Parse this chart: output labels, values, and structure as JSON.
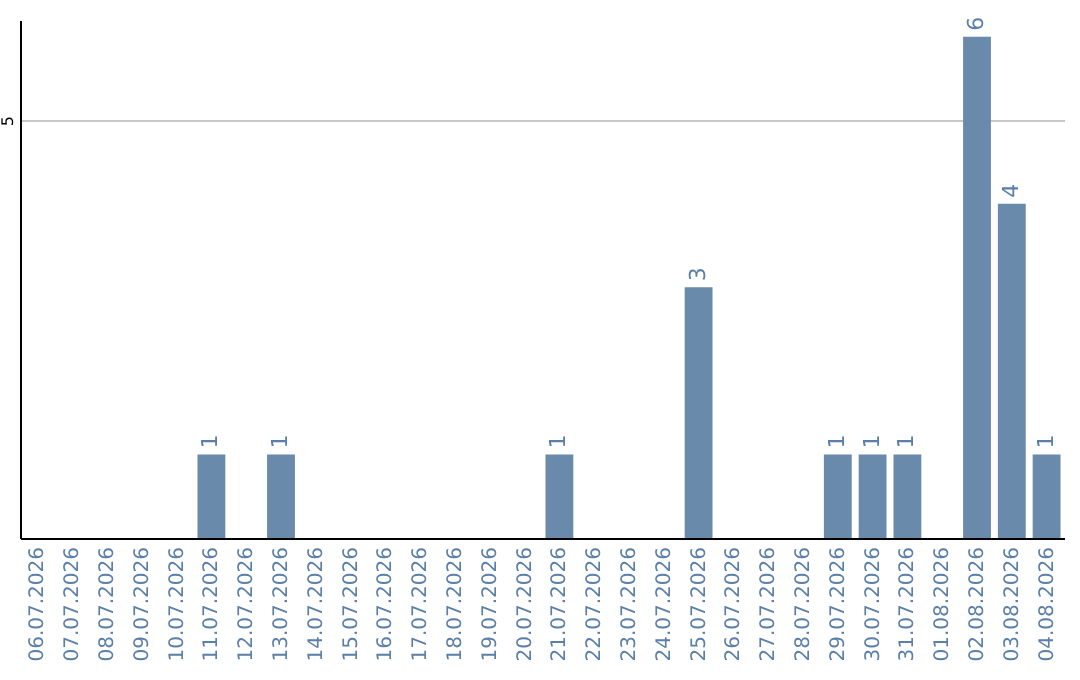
{
  "chart_data": {
    "type": "bar",
    "categories": [
      "06.07.2026",
      "07.07.2026",
      "08.07.2026",
      "09.07.2026",
      "10.07.2026",
      "11.07.2026",
      "12.07.2026",
      "13.07.2026",
      "14.07.2026",
      "15.07.2026",
      "16.07.2026",
      "17.07.2026",
      "18.07.2026",
      "19.07.2026",
      "20.07.2026",
      "21.07.2026",
      "22.07.2026",
      "23.07.2026",
      "24.07.2026",
      "25.07.2026",
      "26.07.2026",
      "27.07.2026",
      "28.07.2026",
      "29.07.2026",
      "30.07.2026",
      "31.07.2026",
      "01.08.2026",
      "02.08.2026",
      "03.08.2026",
      "04.08.2026"
    ],
    "values": [
      0,
      0,
      0,
      0,
      0,
      1,
      0,
      1,
      0,
      0,
      0,
      0,
      0,
      0,
      0,
      1,
      0,
      0,
      0,
      3,
      0,
      0,
      0,
      1,
      1,
      1,
      0,
      6,
      4,
      1
    ],
    "value_labels": [
      null,
      null,
      null,
      null,
      null,
      "1",
      null,
      "1",
      null,
      null,
      null,
      null,
      null,
      null,
      null,
      "1",
      null,
      null,
      null,
      "3",
      null,
      null,
      null,
      "1",
      "1",
      "1",
      null,
      "6",
      "4",
      "1"
    ],
    "color": "#6a8aab",
    "ylim": [
      0,
      6.2
    ],
    "yticks": [
      5
    ],
    "grid": "y"
  }
}
